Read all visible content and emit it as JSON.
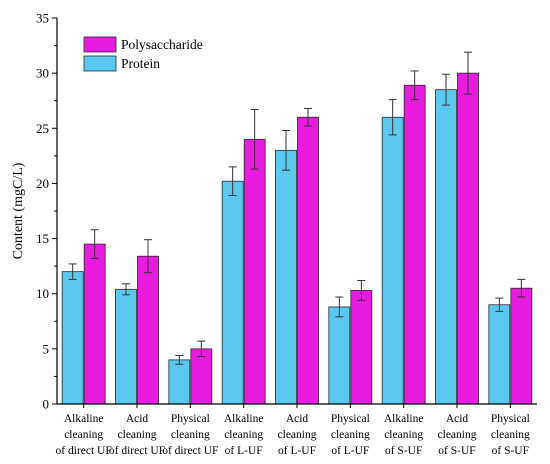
{
  "chart_data": {
    "type": "bar",
    "ylabel": "Content (mgC/L)",
    "ylim": [
      0,
      35
    ],
    "yticks": [
      0,
      5,
      10,
      15,
      20,
      25,
      30,
      35
    ],
    "grid": false,
    "legend_position": "top-left",
    "categories": [
      [
        "Alkaline",
        "cleaning",
        "of direct UF"
      ],
      [
        "Acid",
        "cleaning",
        "of direct UF"
      ],
      [
        "Physical",
        "cleaning",
        "of direct UF"
      ],
      [
        "Alkaline",
        "cleaning",
        "of L-UF"
      ],
      [
        "Acid",
        "cleaning",
        "of L-UF"
      ],
      [
        "Physical",
        "cleaning",
        "of L-UF"
      ],
      [
        "Alkaline",
        "cleaning",
        "of S-UF"
      ],
      [
        "Acid",
        "cleaning",
        "of S-UF"
      ],
      [
        "Physical",
        "cleaning",
        "of S-UF"
      ]
    ],
    "series": [
      {
        "name": "Protein",
        "color": "#5BC8F2",
        "values": [
          12.0,
          10.4,
          4.0,
          20.2,
          23.0,
          8.8,
          26.0,
          28.5,
          9.0
        ],
        "errors": [
          0.7,
          0.5,
          0.4,
          1.3,
          1.8,
          0.9,
          1.6,
          1.4,
          0.6
        ]
      },
      {
        "name": "Polysaccharide",
        "color": "#E81BE0",
        "values": [
          14.5,
          13.4,
          5.0,
          24.0,
          26.0,
          10.3,
          28.9,
          30.0,
          10.5
        ],
        "errors": [
          1.3,
          1.5,
          0.7,
          2.7,
          0.8,
          0.9,
          1.3,
          1.9,
          0.8
        ]
      }
    ],
    "legend_order": [
      "Polysaccharide",
      "Protein"
    ]
  }
}
